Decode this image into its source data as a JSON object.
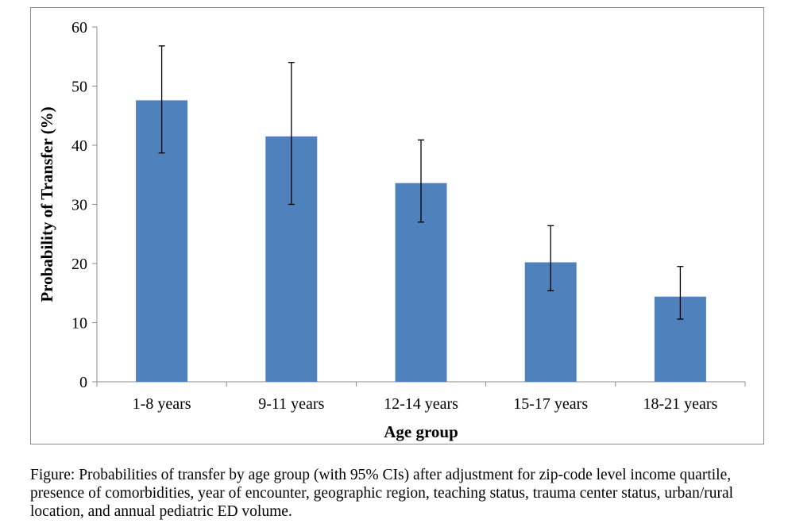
{
  "chart_data": {
    "type": "bar",
    "title": "",
    "xlabel": "Age group",
    "ylabel": "Probability of Transfer (%)",
    "categories": [
      "1-8 years",
      "9-11 years",
      "12-14 years",
      "15-17 years",
      "18-21 years"
    ],
    "values": [
      47.6,
      41.5,
      33.6,
      20.2,
      14.4
    ],
    "ci_lower": [
      38.7,
      30.0,
      27.0,
      15.4,
      10.6
    ],
    "ci_upper": [
      56.8,
      54.0,
      40.9,
      26.4,
      19.5
    ],
    "ylim": [
      0,
      60
    ],
    "yticks": [
      0,
      10,
      20,
      30,
      40,
      50,
      60
    ],
    "grid": false,
    "legend": "none",
    "bar_color": "#4f81bd",
    "error_bar_color": "#000000"
  },
  "caption": "Figure: Probabilities of transfer by age group (with 95% CIs) after adjustment for zip-code level income quartile, presence of comorbidities, year of encounter, geographic region, teaching status, trauma center status, urban/rural location, and annual pediatric ED volume."
}
